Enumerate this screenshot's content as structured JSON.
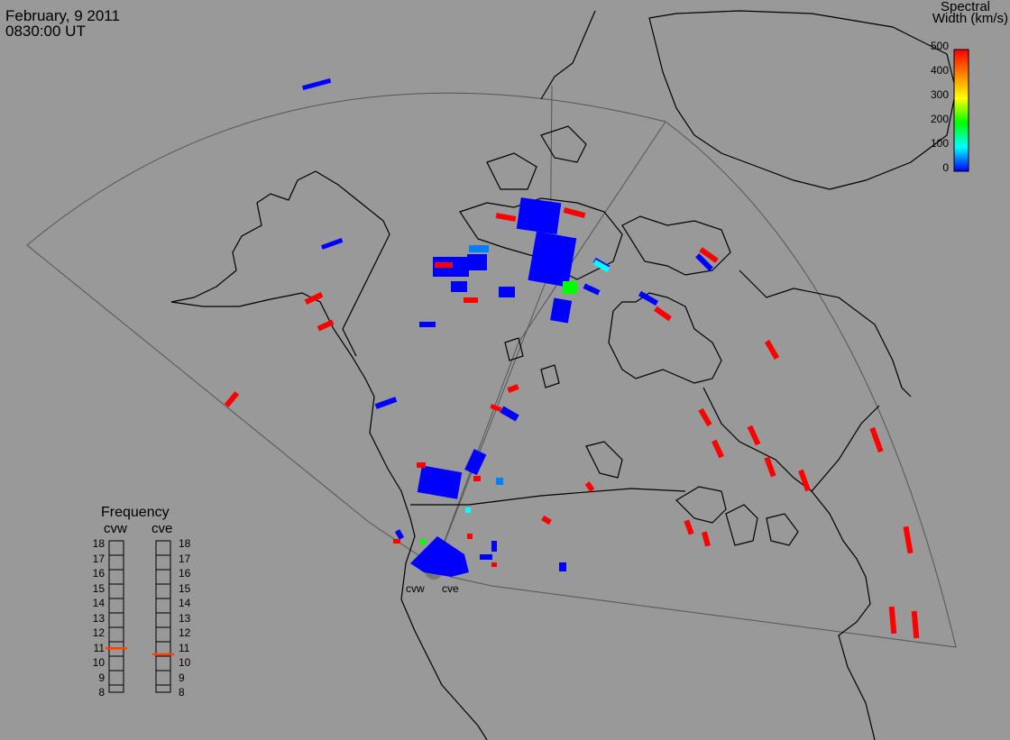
{
  "header": {
    "date": "February, 9 2011",
    "time": "0830:00 UT"
  },
  "colorbar": {
    "title_line1": "Spectral",
    "title_line2": "Width (km/s)",
    "ticks": [
      "500",
      "400",
      "300",
      "200",
      "100",
      "0"
    ],
    "stops": [
      "#ff0000",
      "#ff8000",
      "#ffff00",
      "#00ff00",
      "#00ffff",
      "#0000ff"
    ]
  },
  "frequency_panel": {
    "title": "Frequency",
    "radars": [
      {
        "name": "cvw",
        "freq_mhz": 10.9,
        "marker_color": "#ff4000"
      },
      {
        "name": "cve",
        "freq_mhz": 10.5,
        "marker_color": "#ff4000"
      }
    ],
    "scale": [
      "18",
      "17",
      "16",
      "15",
      "14",
      "13",
      "12",
      "11",
      "10",
      "9",
      "8"
    ]
  },
  "radar_sites": {
    "left_label": "cvw",
    "right_label": "cve"
  },
  "colors": {
    "background": "#999999",
    "low_width": "#0000ff",
    "high_width": "#ff0000",
    "mid_width": "#00ffff",
    "green_width": "#00ff00"
  }
}
